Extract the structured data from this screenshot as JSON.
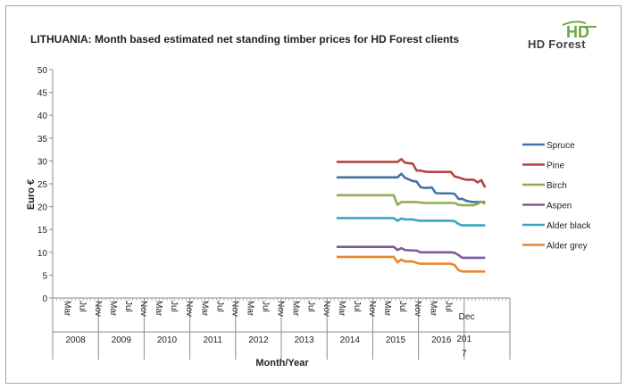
{
  "logo": {
    "brand": "HD Forest",
    "mark_text": "HD"
  },
  "chart_data": {
    "type": "line",
    "title": "LITHUANIA: Month based estimated net standing timber prices for HD Forest clients",
    "xlabel": "Month/Year",
    "ylabel": "Euro €",
    "ylim": [
      0,
      50
    ],
    "yticks": [
      0,
      5,
      10,
      15,
      20,
      25,
      30,
      35,
      40,
      45,
      50
    ],
    "years": [
      "2008",
      "2009",
      "2010",
      "2011",
      "2012",
      "2013",
      "2014",
      "2015",
      "2016",
      "201 7"
    ],
    "month_ticks": [
      "Mar",
      "Jul",
      "Nov"
    ],
    "last_month_tick": "Dec",
    "grid": false,
    "legend_position": "right",
    "x_note": "x is month index: 0 = Jan 2008, 113 = Jun 2017",
    "series": [
      {
        "name": "Spruce",
        "color": "#4472a8",
        "points": [
          [
            74,
            26.4
          ],
          [
            90,
            26.4
          ],
          [
            91,
            27.2
          ],
          [
            92,
            26.3
          ],
          [
            94,
            25.6
          ],
          [
            95,
            25.5
          ],
          [
            96,
            24.3
          ],
          [
            97,
            24.1
          ],
          [
            98,
            24.1
          ],
          [
            99,
            24.2
          ],
          [
            100,
            23.0
          ],
          [
            101,
            22.9
          ],
          [
            104,
            22.9
          ],
          [
            105,
            22.8
          ],
          [
            106,
            21.7
          ],
          [
            107,
            21.7
          ],
          [
            108,
            21.3
          ],
          [
            109,
            21.1
          ],
          [
            110,
            21.0
          ],
          [
            112,
            21.0
          ],
          [
            113,
            21.0
          ]
        ]
      },
      {
        "name": "Pine",
        "color": "#b54543",
        "points": [
          [
            74,
            29.8
          ],
          [
            90,
            29.8
          ],
          [
            91,
            30.4
          ],
          [
            92,
            29.6
          ],
          [
            94,
            29.4
          ],
          [
            95,
            27.9
          ],
          [
            96,
            27.9
          ],
          [
            97,
            27.7
          ],
          [
            98,
            27.6
          ],
          [
            104,
            27.6
          ],
          [
            105,
            26.6
          ],
          [
            106,
            26.4
          ],
          [
            107,
            26.1
          ],
          [
            108,
            25.9
          ],
          [
            109,
            25.9
          ],
          [
            110,
            25.9
          ],
          [
            111,
            25.3
          ],
          [
            112,
            25.8
          ],
          [
            113,
            24.2
          ]
        ]
      },
      {
        "name": "Birch",
        "color": "#8fae4d",
        "points": [
          [
            74,
            22.5
          ],
          [
            89,
            22.5
          ],
          [
            90,
            20.4
          ],
          [
            91,
            21.0
          ],
          [
            92,
            21.0
          ],
          [
            95,
            21.0
          ],
          [
            96,
            20.9
          ],
          [
            97,
            20.8
          ],
          [
            100,
            20.8
          ],
          [
            104,
            20.8
          ],
          [
            105,
            20.8
          ],
          [
            106,
            20.4
          ],
          [
            107,
            20.3
          ],
          [
            110,
            20.3
          ],
          [
            111,
            20.6
          ],
          [
            112,
            21.1
          ],
          [
            113,
            20.6
          ]
        ]
      },
      {
        "name": "Aspen",
        "color": "#7b5b9d",
        "points": [
          [
            74,
            11.2
          ],
          [
            89,
            11.2
          ],
          [
            90,
            10.5
          ],
          [
            91,
            10.9
          ],
          [
            92,
            10.5
          ],
          [
            94,
            10.4
          ],
          [
            95,
            10.4
          ],
          [
            96,
            10.0
          ],
          [
            98,
            10.0
          ],
          [
            104,
            10.0
          ],
          [
            105,
            9.9
          ],
          [
            106,
            9.4
          ],
          [
            107,
            8.8
          ],
          [
            110,
            8.8
          ],
          [
            112,
            8.8
          ],
          [
            113,
            8.8
          ]
        ]
      },
      {
        "name": "Alder black",
        "color": "#3aa6bf",
        "points": [
          [
            74,
            17.5
          ],
          [
            89,
            17.5
          ],
          [
            90,
            16.9
          ],
          [
            91,
            17.4
          ],
          [
            92,
            17.2
          ],
          [
            94,
            17.2
          ],
          [
            95,
            17.0
          ],
          [
            96,
            16.9
          ],
          [
            104,
            16.9
          ],
          [
            105,
            16.8
          ],
          [
            106,
            16.2
          ],
          [
            107,
            15.9
          ],
          [
            110,
            15.9
          ],
          [
            112,
            15.9
          ],
          [
            113,
            15.9
          ]
        ]
      },
      {
        "name": "Alder grey",
        "color": "#e8862f",
        "points": [
          [
            74,
            9.0
          ],
          [
            89,
            9.0
          ],
          [
            90,
            7.8
          ],
          [
            91,
            8.4
          ],
          [
            92,
            8.0
          ],
          [
            94,
            8.0
          ],
          [
            95,
            7.7
          ],
          [
            96,
            7.5
          ],
          [
            104,
            7.5
          ],
          [
            105,
            7.2
          ],
          [
            106,
            6.1
          ],
          [
            107,
            5.8
          ],
          [
            110,
            5.8
          ],
          [
            112,
            5.8
          ],
          [
            113,
            5.8
          ]
        ]
      }
    ]
  }
}
